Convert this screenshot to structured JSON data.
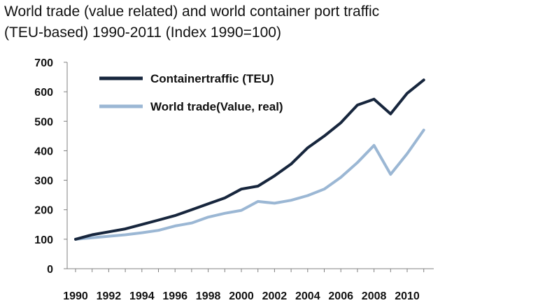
{
  "title_line1": "World trade (value related) and world container port traffic",
  "title_line2": "(TEU-based) 1990-2011 (Index 1990=100)",
  "chart_data": {
    "type": "line",
    "title": "World trade (value related) and world container port traffic (TEU-based) 1990-2011 (Index 1990=100)",
    "xlabel": "",
    "ylabel": "",
    "x": [
      1990,
      1991,
      1992,
      1993,
      1994,
      1995,
      1996,
      1997,
      1998,
      1999,
      2000,
      2001,
      2002,
      2003,
      2004,
      2005,
      2006,
      2007,
      2008,
      2009,
      2010,
      2011
    ],
    "x_tick_labels": [
      "1990",
      "1992",
      "1994",
      "1996",
      "1998",
      "2000",
      "2002",
      "2004",
      "2006",
      "2008",
      "2010"
    ],
    "x_tick_values": [
      1990,
      1992,
      1994,
      1996,
      1998,
      2000,
      2002,
      2004,
      2006,
      2008,
      2010
    ],
    "ylim": [
      0,
      700
    ],
    "y_ticks": [
      0,
      100,
      200,
      300,
      400,
      500,
      600,
      700
    ],
    "grid": false,
    "legend_position": "top-left",
    "series": [
      {
        "name": "Containertraffic (TEU)",
        "color": "#17263d",
        "values": [
          100,
          115,
          125,
          135,
          150,
          165,
          180,
          200,
          220,
          240,
          270,
          280,
          315,
          355,
          410,
          450,
          495,
          555,
          575,
          525,
          595,
          640
        ]
      },
      {
        "name": "World trade(Value, real)",
        "color": "#9bb7d4",
        "values": [
          100,
          105,
          110,
          115,
          122,
          130,
          145,
          155,
          175,
          188,
          198,
          228,
          222,
          232,
          248,
          270,
          310,
          360,
          418,
          320,
          390,
          470
        ]
      }
    ]
  }
}
